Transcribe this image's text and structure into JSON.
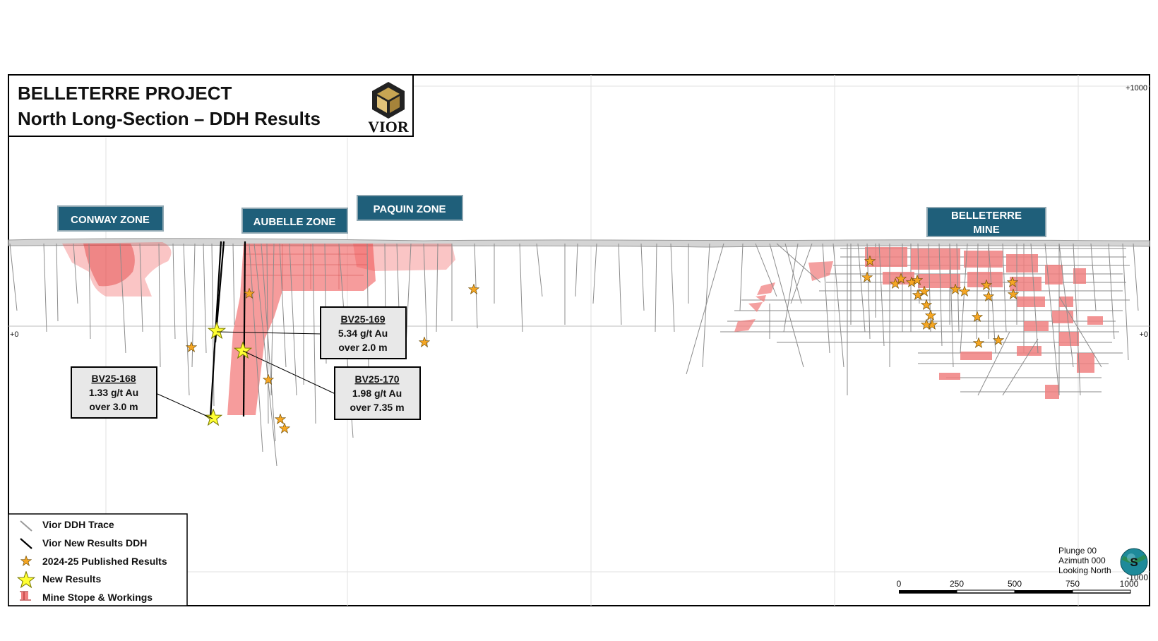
{
  "title": {
    "line1": "BELLETERRE PROJECT",
    "line2": "North Long-Section – DDH Results"
  },
  "logo": {
    "text": "VIOR",
    "icon": "vior-cube-logo-icon"
  },
  "zones": [
    {
      "id": "conway",
      "label": "CONWAY ZONE"
    },
    {
      "id": "aubelle",
      "label": "AUBELLE ZONE"
    },
    {
      "id": "paquin",
      "label": "PAQUIN ZONE"
    },
    {
      "id": "belleterre",
      "label_line1": "BELLETERRE",
      "label_line2": "MINE"
    }
  ],
  "elevations": {
    "top": "+1000",
    "zero_left": "+0",
    "zero_right": "+0",
    "bottom": "-1000"
  },
  "callouts": [
    {
      "id": "bv25-168",
      "hole": "BV25-168",
      "grade": "1.33 g/t Au",
      "interval": "over 3.0 m"
    },
    {
      "id": "bv25-169",
      "hole": "BV25-169",
      "grade": "5.34 g/t Au",
      "interval": "over 2.0 m"
    },
    {
      "id": "bv25-170",
      "hole": "BV25-170",
      "grade": "1.98 g/t Au",
      "interval": "over 7.35 m"
    }
  ],
  "legend": [
    {
      "symbol": "ddh-trace-icon",
      "label": "Vior DDH Trace"
    },
    {
      "symbol": "new-ddh-icon",
      "label": "Vior New Results DDH"
    },
    {
      "symbol": "published-star-icon",
      "label": "2024-25 Published Results"
    },
    {
      "symbol": "new-star-icon",
      "label": "New Results"
    },
    {
      "symbol": "mine-stope-icon",
      "label": "Mine Stope & Workings"
    }
  ],
  "view_info": {
    "plunge": "Plunge 00",
    "azimuth": "Azimuth 000",
    "looking": "Looking North",
    "compass_letter": "S"
  },
  "scale_bar": {
    "ticks": [
      "0",
      "250",
      "500",
      "750",
      "1000"
    ]
  },
  "colors": {
    "zone_label_bg": "#1f5f7a",
    "zone_label_text": "#ffffff",
    "stope_fill": "#f08080",
    "zone_solid": "#ef4a4a",
    "published_star": "#f5a623",
    "new_star": "#ffff33",
    "ddh_trace": "#8c8c8c",
    "new_ddh": "#000000"
  }
}
